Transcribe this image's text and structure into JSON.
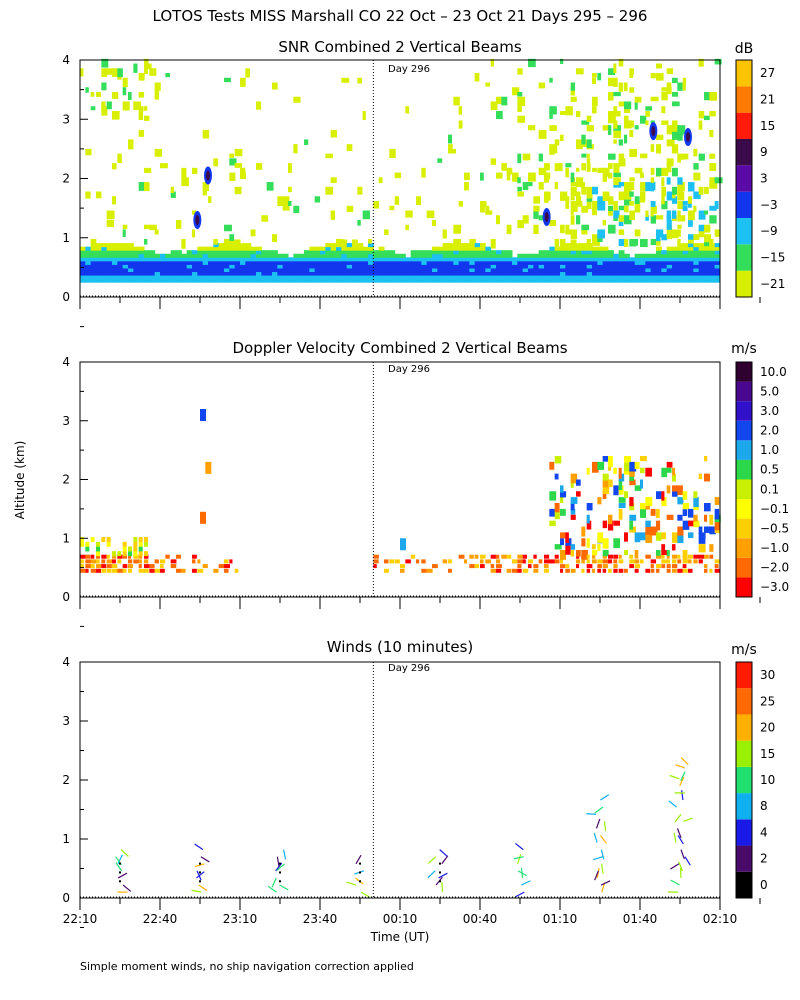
{
  "figure_title": "LOTOS Tests MISS Marshall CO  22 Oct – 23 Oct 21 Days 295 – 296",
  "footnote": "Simple moment winds, no ship navigation correction applied",
  "ylabel": "Altitude (km)",
  "xlabel": "Time (UT)",
  "day_marker_label": "Day 296",
  "x_ticks": [
    "22:10",
    "22:40",
    "23:10",
    "23:40",
    "00:10",
    "00:40",
    "01:10",
    "01:40",
    "02:10"
  ],
  "y_ticks": [
    "0",
    "1",
    "2",
    "3",
    "4"
  ],
  "colors": {
    "snr": [
      "#d8f000",
      "#34dd5a",
      "#1cc0f2",
      "#1236ee",
      "#5a0aa6",
      "#3a0a4a",
      "#ff1a0a",
      "#ff7a00",
      "#ffc400"
    ],
    "doppler": [
      "#ff0000",
      "#ff6a00",
      "#ffa000",
      "#ffd000",
      "#ffff00",
      "#c8f000",
      "#2cd84a",
      "#1ca8ea",
      "#1246ee",
      "#3010c8",
      "#4a0890",
      "#300030"
    ],
    "winds": [
      "#000000",
      "#4a0a6a",
      "#1a1ae8",
      "#10b0f0",
      "#20e070",
      "#9af000",
      "#ffb000",
      "#ff6a00",
      "#ff1a00"
    ]
  },
  "chart_data": [
    {
      "type": "heatmap",
      "title": "SNR Combined 2 Vertical Beams",
      "colorbar_unit": "dB",
      "colorbar_labels": [
        "27",
        "21",
        "15",
        "9",
        "3",
        "−3",
        "−9",
        "−15",
        "−21"
      ],
      "colorbar_values": [
        -21,
        -15,
        -9,
        -3,
        3,
        9,
        15,
        21,
        27
      ],
      "x_range_minutes": [
        0,
        240
      ],
      "ylim": [
        0,
        4
      ],
      "day_boundary_minutes": 110,
      "layers": [
        {
          "name": "boundary layer",
          "alt_bottom_km": 0.25,
          "alt_top_km": 0.85,
          "snr_core_db": -3
        }
      ]
    },
    {
      "type": "heatmap",
      "title": "Doppler Velocity Combined 2 Vertical Beams",
      "colorbar_unit": "m/s",
      "colorbar_labels": [
        "10.0",
        "5.0",
        "3.0",
        "2.0",
        "1.0",
        "0.5",
        "0.1",
        "−0.1",
        "−0.5",
        "−1.0",
        "−2.0",
        "−3.0"
      ],
      "colorbar_values": [
        -3.0,
        -2.0,
        -1.0,
        -0.5,
        -0.1,
        0.1,
        0.5,
        1.0,
        2.0,
        3.0,
        5.0,
        10.0
      ],
      "x_range_minutes": [
        0,
        240
      ],
      "ylim": [
        0,
        4
      ],
      "day_boundary_minutes": 110
    },
    {
      "type": "scatter",
      "title": "Winds (10 minutes)",
      "colorbar_unit": "m/s",
      "colorbar_labels": [
        "30",
        "25",
        "20",
        "15",
        "10",
        "8",
        "4",
        "2",
        "0"
      ],
      "colorbar_values": [
        0,
        2,
        4,
        8,
        10,
        15,
        20,
        25,
        30
      ],
      "x_range_minutes": [
        0,
        240
      ],
      "ylim": [
        0,
        4
      ],
      "day_boundary_minutes": 110,
      "profile_times_minutes": [
        15,
        45,
        75,
        105,
        135,
        165,
        195,
        225
      ]
    }
  ]
}
